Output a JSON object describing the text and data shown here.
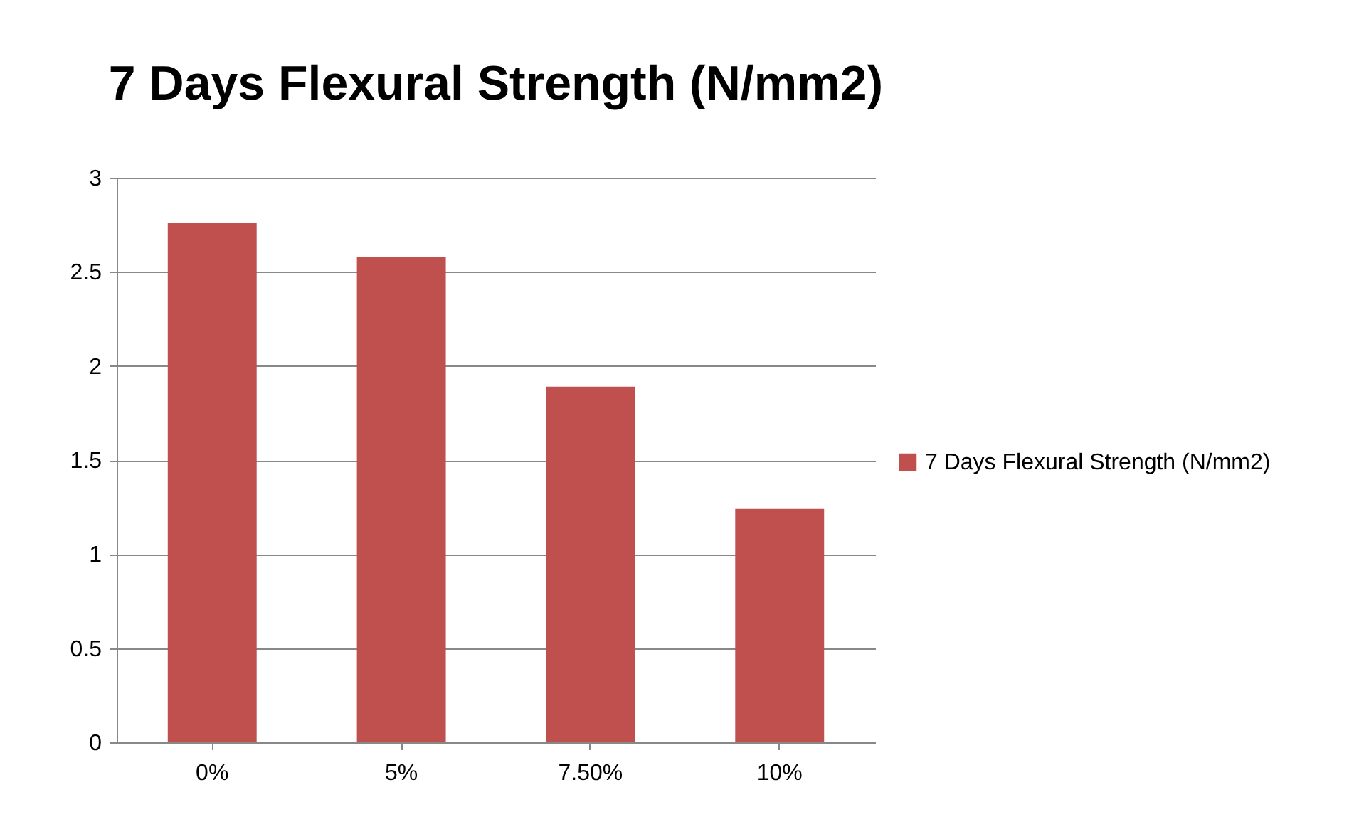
{
  "chart_data": {
    "type": "bar",
    "title": "7 Days Flexural Strength (N/mm2)",
    "categories": [
      "0%",
      "5%",
      "7.50%",
      "10%"
    ],
    "series": [
      {
        "name": "7 Days Flexural Strength (N/mm2)",
        "color": "#c0504d",
        "values": [
          2.76,
          2.58,
          1.89,
          1.24
        ]
      }
    ],
    "ylim": [
      0,
      3
    ],
    "yticks": [
      0,
      0.5,
      1,
      1.5,
      2,
      2.5,
      3
    ],
    "grid": "y",
    "legend": "right"
  }
}
